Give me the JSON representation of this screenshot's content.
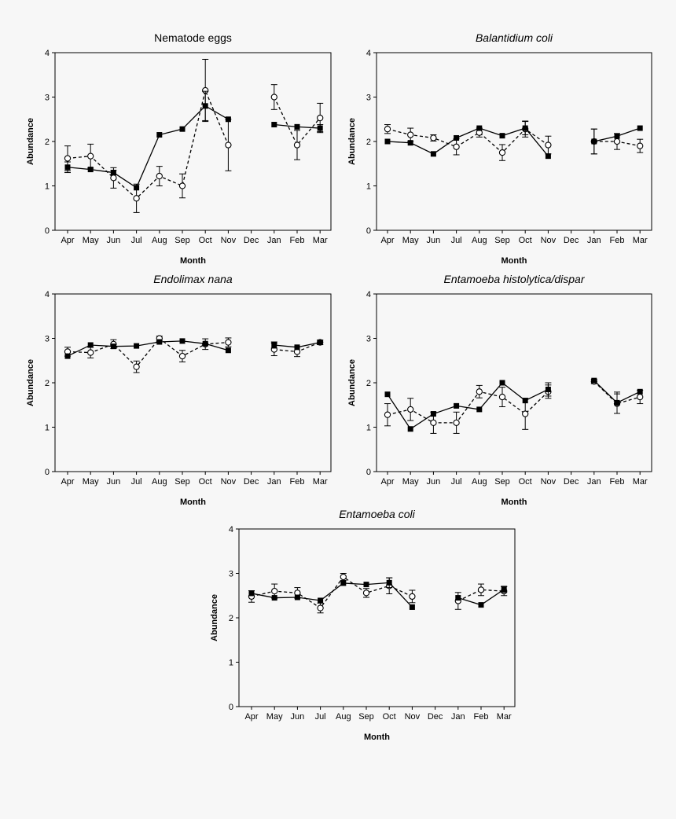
{
  "chart_data": [
    {
      "type": "line",
      "title": "Nematode eggs",
      "title_italic": false,
      "xlabel": "Month",
      "ylabel": "Abundance",
      "ylim": [
        0,
        4
      ],
      "yticks": [
        "0",
        "1",
        "2",
        "3",
        "4"
      ],
      "categories": [
        "Apr",
        "May",
        "Jun",
        "Jul",
        "Aug",
        "Sep",
        "Oct",
        "Nov",
        "Dec",
        "Jan",
        "Feb",
        "Mar"
      ],
      "series": [
        {
          "marker": "filled-square",
          "line": "solid",
          "values": [
            1.42,
            1.37,
            1.3,
            0.96,
            2.15,
            2.28,
            2.8,
            2.5,
            null,
            2.38,
            2.33,
            2.3
          ],
          "errors": [
            0.12,
            null,
            0.05,
            null,
            null,
            null,
            0.33,
            null,
            null,
            null,
            null,
            0.08
          ]
        },
        {
          "marker": "open-circle",
          "line": "dashed",
          "values": [
            1.62,
            1.67,
            1.18,
            0.72,
            1.22,
            1.0,
            3.15,
            1.92,
            null,
            3.0,
            1.92,
            2.53
          ],
          "errors": [
            0.28,
            0.27,
            0.23,
            0.32,
            0.22,
            0.27,
            0.7,
            0.58,
            null,
            0.28,
            0.33,
            0.33
          ]
        }
      ]
    },
    {
      "type": "line",
      "title": "Balantidium coli",
      "title_italic": true,
      "xlabel": "Month",
      "ylabel": "Abundance",
      "ylim": [
        0,
        4
      ],
      "yticks": [
        "0",
        "1",
        "2",
        "3",
        "4"
      ],
      "categories": [
        "Apr",
        "May",
        "Jun",
        "Jul",
        "Aug",
        "Sep",
        "Oct",
        "Nov",
        "Dec",
        "Jan",
        "Feb",
        "Mar"
      ],
      "series": [
        {
          "marker": "filled-square",
          "line": "solid",
          "values": [
            2.0,
            1.97,
            1.72,
            2.08,
            2.3,
            2.13,
            2.3,
            1.67,
            null,
            2.0,
            2.12,
            2.3
          ],
          "errors": [
            null,
            null,
            null,
            null,
            null,
            null,
            0.15,
            null,
            null,
            0.28,
            null,
            null
          ]
        },
        {
          "marker": "open-circle",
          "line": "dashed",
          "values": [
            2.28,
            2.15,
            2.08,
            1.88,
            2.2,
            1.75,
            2.28,
            1.92,
            null,
            2.0,
            2.0,
            1.9
          ],
          "errors": [
            0.1,
            0.15,
            0.07,
            0.18,
            0.1,
            0.18,
            0.18,
            0.2,
            null,
            0.28,
            0.18,
            0.15
          ]
        }
      ]
    },
    {
      "type": "line",
      "title": "Endolimax nana",
      "title_italic": true,
      "xlabel": "Month",
      "ylabel": "Abundance",
      "ylim": [
        0,
        4
      ],
      "yticks": [
        "0",
        "1",
        "2",
        "3",
        "4"
      ],
      "categories": [
        "Apr",
        "May",
        "Jun",
        "Jul",
        "Aug",
        "Sep",
        "Oct",
        "Nov",
        "Dec",
        "Jan",
        "Feb",
        "Mar"
      ],
      "series": [
        {
          "marker": "filled-square",
          "line": "solid",
          "values": [
            2.6,
            2.85,
            2.82,
            2.83,
            2.92,
            2.94,
            2.88,
            2.73,
            null,
            2.85,
            2.8,
            2.91
          ],
          "errors": [
            null,
            null,
            null,
            null,
            null,
            null,
            null,
            null,
            null,
            0.07,
            null,
            0.05
          ]
        },
        {
          "marker": "open-circle",
          "line": "dashed",
          "values": [
            2.7,
            2.68,
            2.87,
            2.36,
            3.0,
            2.6,
            2.87,
            2.91,
            null,
            2.75,
            2.7,
            2.91
          ],
          "errors": [
            0.1,
            0.12,
            0.1,
            0.13,
            0.05,
            0.13,
            0.12,
            0.1,
            null,
            0.14,
            0.11,
            0.05
          ]
        }
      ]
    },
    {
      "type": "line",
      "title": "Entamoeba histolytica/dispar",
      "title_italic": true,
      "xlabel": "Month",
      "ylabel": "Abundance",
      "ylim": [
        0,
        4
      ],
      "yticks": [
        "0",
        "1",
        "2",
        "3",
        "4"
      ],
      "categories": [
        "Apr",
        "May",
        "Jun",
        "Jul",
        "Aug",
        "Sep",
        "Oct",
        "Nov",
        "Dec",
        "Jan",
        "Feb",
        "Mar"
      ],
      "series": [
        {
          "marker": "filled-square",
          "line": "solid",
          "values": [
            1.74,
            0.96,
            1.3,
            1.48,
            1.4,
            2.0,
            1.6,
            1.85,
            null,
            2.05,
            1.55,
            1.8
          ],
          "errors": [
            null,
            null,
            null,
            null,
            null,
            null,
            null,
            0.15,
            null,
            null,
            0.24,
            null
          ]
        },
        {
          "marker": "open-circle",
          "line": "dashed",
          "values": [
            1.28,
            1.4,
            1.1,
            1.1,
            1.8,
            1.68,
            1.3,
            1.8,
            null,
            2.03,
            1.53,
            1.68
          ],
          "errors": [
            0.25,
            0.25,
            0.24,
            0.24,
            0.14,
            0.22,
            0.35,
            0.15,
            null,
            0.05,
            0.22,
            0.15
          ]
        }
      ]
    },
    {
      "type": "line",
      "title": "Entamoeba coli",
      "title_italic": true,
      "xlabel": "Month",
      "ylabel": "Abundance",
      "ylim": [
        0,
        4
      ],
      "yticks": [
        "0",
        "1",
        "2",
        "3",
        "4"
      ],
      "categories": [
        "Apr",
        "May",
        "Jun",
        "Jul",
        "Aug",
        "Sep",
        "Oct",
        "Nov",
        "Dec",
        "Jan",
        "Feb",
        "Mar"
      ],
      "series": [
        {
          "marker": "filled-square",
          "line": "solid",
          "values": [
            2.55,
            2.45,
            2.46,
            2.39,
            2.78,
            2.75,
            2.79,
            2.24,
            null,
            2.45,
            2.29,
            2.64
          ],
          "errors": [
            null,
            null,
            null,
            null,
            null,
            null,
            0.11,
            null,
            null,
            null,
            null,
            0.07
          ]
        },
        {
          "marker": "open-circle",
          "line": "dashed",
          "values": [
            2.48,
            2.6,
            2.56,
            2.22,
            2.92,
            2.56,
            2.72,
            2.48,
            null,
            2.38,
            2.63,
            2.6
          ],
          "errors": [
            0.13,
            0.16,
            0.12,
            0.11,
            0.08,
            0.1,
            0.18,
            0.14,
            null,
            0.19,
            0.13,
            0.1
          ]
        }
      ]
    }
  ]
}
